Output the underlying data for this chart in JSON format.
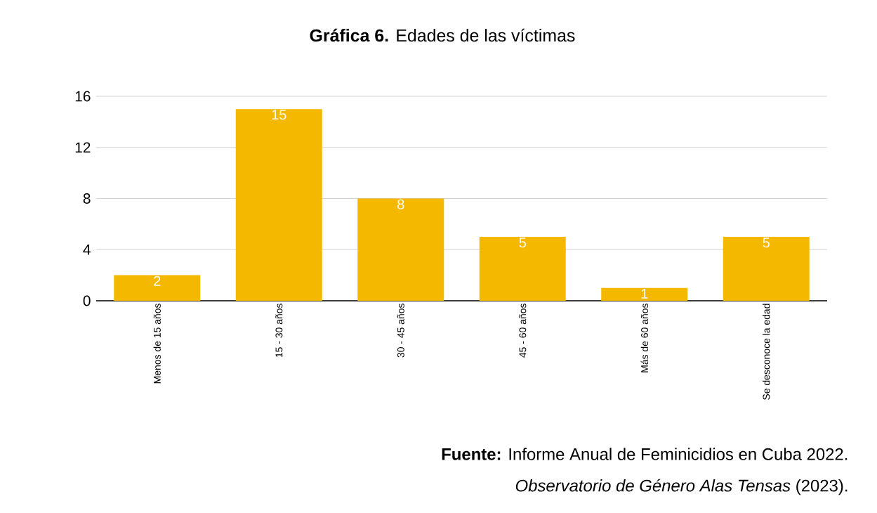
{
  "chart_data": {
    "type": "bar",
    "title": "**Gráfica 6.** Edades de las víctimas",
    "categories": [
      "Menos de 15 años",
      "15 - 30 años",
      "30 - 45 años",
      "45 - 60 años",
      "Más de 60 años",
      "Se desconoce la edad"
    ],
    "values": [
      2,
      15,
      8,
      5,
      1,
      5
    ],
    "color": "#f5b800",
    "data_labels": true,
    "ylim": [
      0,
      16
    ],
    "yticks": [
      0,
      4,
      8,
      12,
      16
    ],
    "grid": "y",
    "annotations": [
      "**Fuente:** Informe Anual de Feminicidios en Cuba 2022.",
      "*Observatorio de Género Alas Tensas* (2023)."
    ]
  }
}
